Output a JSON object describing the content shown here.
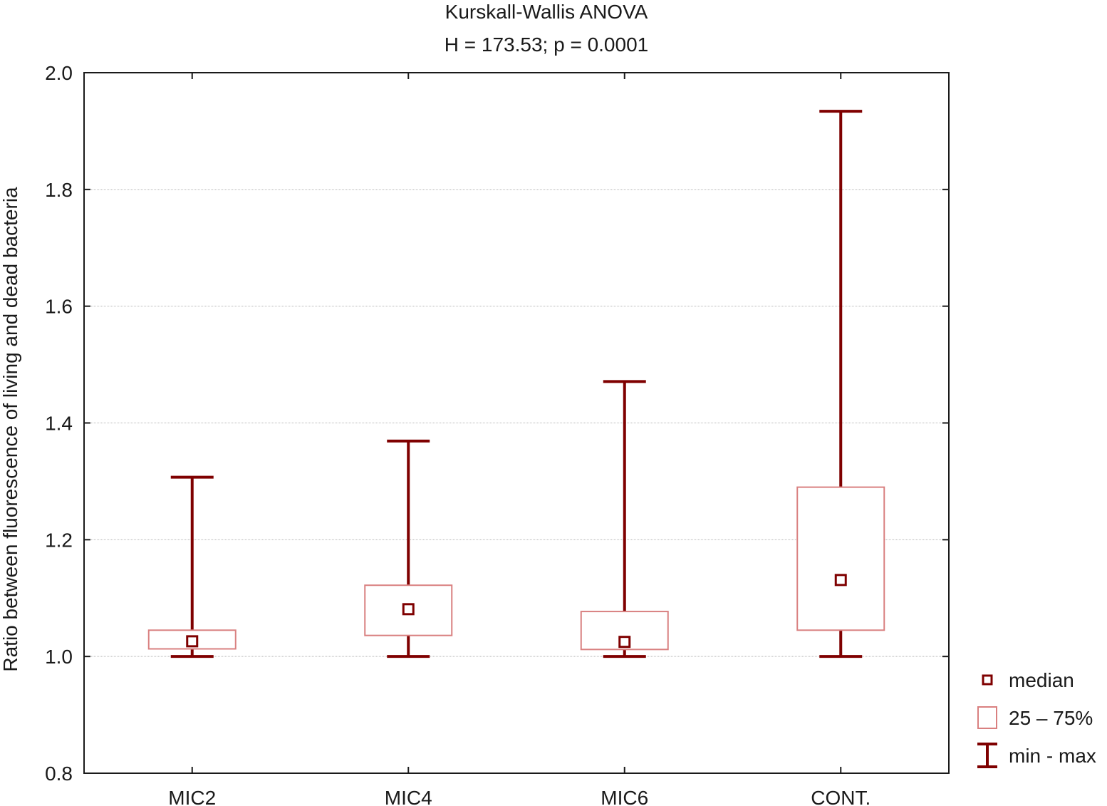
{
  "chart_data": {
    "type": "box",
    "title": "Kurskall-Wallis ANOVA",
    "subtitle": "H = 173.53;  p = 0.0001",
    "xlabel": "",
    "ylabel": "Ratio between fluorescence of living and dead bacteria",
    "ylim": [
      0.8,
      2.0
    ],
    "yticks": [
      "0.8",
      "1.0",
      "1.2",
      "1.4",
      "1.6",
      "1.8",
      "2.0"
    ],
    "grid": true,
    "legend_position": "right-bottom",
    "categories": [
      "MIC2",
      "MIC4",
      "MIC6",
      "CONT."
    ],
    "series": [
      {
        "category": "MIC2",
        "min": 1.0,
        "q1": 1.013,
        "median": 1.026,
        "q3": 1.045,
        "max": 1.307
      },
      {
        "category": "MIC4",
        "min": 1.0,
        "q1": 1.036,
        "median": 1.081,
        "q3": 1.122,
        "max": 1.369
      },
      {
        "category": "MIC6",
        "min": 1.0,
        "q1": 1.012,
        "median": 1.025,
        "q3": 1.077,
        "max": 1.471
      },
      {
        "category": "CONT.",
        "min": 1.0,
        "q1": 1.045,
        "median": 1.131,
        "q3": 1.29,
        "max": 1.934
      }
    ],
    "legend": [
      {
        "symbol": "median",
        "label": "median"
      },
      {
        "symbol": "box",
        "label": "25 – 75%"
      },
      {
        "symbol": "whisker",
        "label": "min - max"
      }
    ],
    "colors": {
      "whisker": "#7f0000",
      "median": "#7f0000",
      "box": "#d98080"
    }
  }
}
